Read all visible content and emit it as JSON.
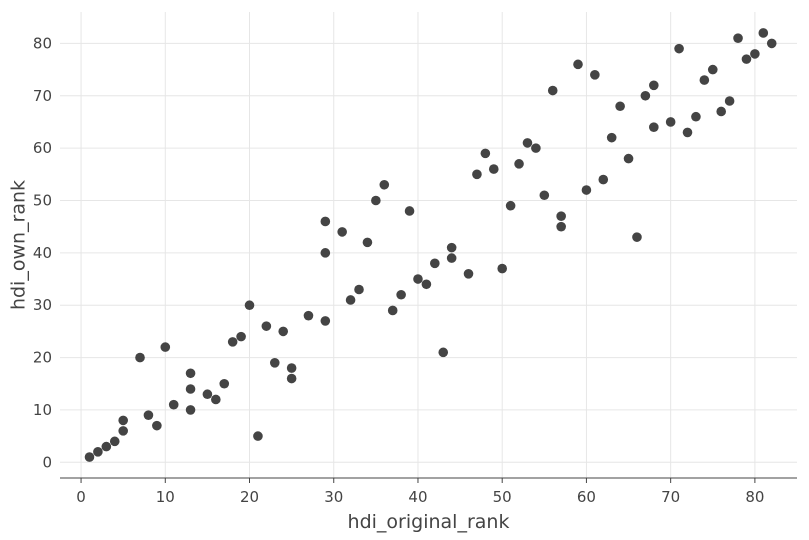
{
  "chart_data": {
    "type": "scatter",
    "title": "",
    "xlabel": "hdi_original_rank",
    "ylabel": "hdi_own_rank",
    "xlim": [
      -2.5,
      85
    ],
    "ylim": [
      -3,
      86
    ],
    "x_ticks": [
      0,
      10,
      20,
      30,
      40,
      50,
      60,
      70,
      80
    ],
    "y_ticks": [
      0,
      10,
      20,
      30,
      40,
      50,
      60,
      70,
      80
    ],
    "grid": true,
    "legend": "none",
    "point_color": "#444444",
    "points": [
      [
        1,
        1
      ],
      [
        2,
        2
      ],
      [
        3,
        3
      ],
      [
        4,
        4
      ],
      [
        5,
        6
      ],
      [
        5,
        8
      ],
      [
        7,
        20
      ],
      [
        8,
        9
      ],
      [
        9,
        7
      ],
      [
        10,
        22
      ],
      [
        11,
        11
      ],
      [
        13,
        10
      ],
      [
        13,
        14
      ],
      [
        13,
        17
      ],
      [
        15,
        13
      ],
      [
        16,
        12
      ],
      [
        17,
        15
      ],
      [
        18,
        23
      ],
      [
        19,
        24
      ],
      [
        20,
        30
      ],
      [
        21,
        5
      ],
      [
        22,
        26
      ],
      [
        23,
        19
      ],
      [
        24,
        25
      ],
      [
        25,
        18
      ],
      [
        25,
        16
      ],
      [
        27,
        28
      ],
      [
        29,
        27
      ],
      [
        29,
        40
      ],
      [
        29,
        46
      ],
      [
        31,
        44
      ],
      [
        32,
        31
      ],
      [
        33,
        33
      ],
      [
        34,
        42
      ],
      [
        35,
        50
      ],
      [
        36,
        53
      ],
      [
        37,
        29
      ],
      [
        38,
        32
      ],
      [
        39,
        48
      ],
      [
        40,
        35
      ],
      [
        41,
        34
      ],
      [
        42,
        38
      ],
      [
        43,
        21
      ],
      [
        44,
        39
      ],
      [
        44,
        41
      ],
      [
        46,
        36
      ],
      [
        47,
        55
      ],
      [
        48,
        59
      ],
      [
        49,
        56
      ],
      [
        50,
        37
      ],
      [
        51,
        49
      ],
      [
        52,
        57
      ],
      [
        53,
        61
      ],
      [
        54,
        60
      ],
      [
        55,
        51
      ],
      [
        56,
        71
      ],
      [
        57,
        47
      ],
      [
        57,
        45
      ],
      [
        59,
        76
      ],
      [
        60,
        52
      ],
      [
        61,
        74
      ],
      [
        62,
        54
      ],
      [
        63,
        62
      ],
      [
        64,
        68
      ],
      [
        65,
        58
      ],
      [
        66,
        43
      ],
      [
        67,
        70
      ],
      [
        68,
        72
      ],
      [
        68,
        64
      ],
      [
        70,
        65
      ],
      [
        71,
        79
      ],
      [
        72,
        63
      ],
      [
        73,
        66
      ],
      [
        74,
        73
      ],
      [
        75,
        75
      ],
      [
        76,
        67
      ],
      [
        77,
        69
      ],
      [
        78,
        81
      ],
      [
        79,
        77
      ],
      [
        80,
        78
      ],
      [
        81,
        82
      ],
      [
        82,
        80
      ]
    ]
  }
}
